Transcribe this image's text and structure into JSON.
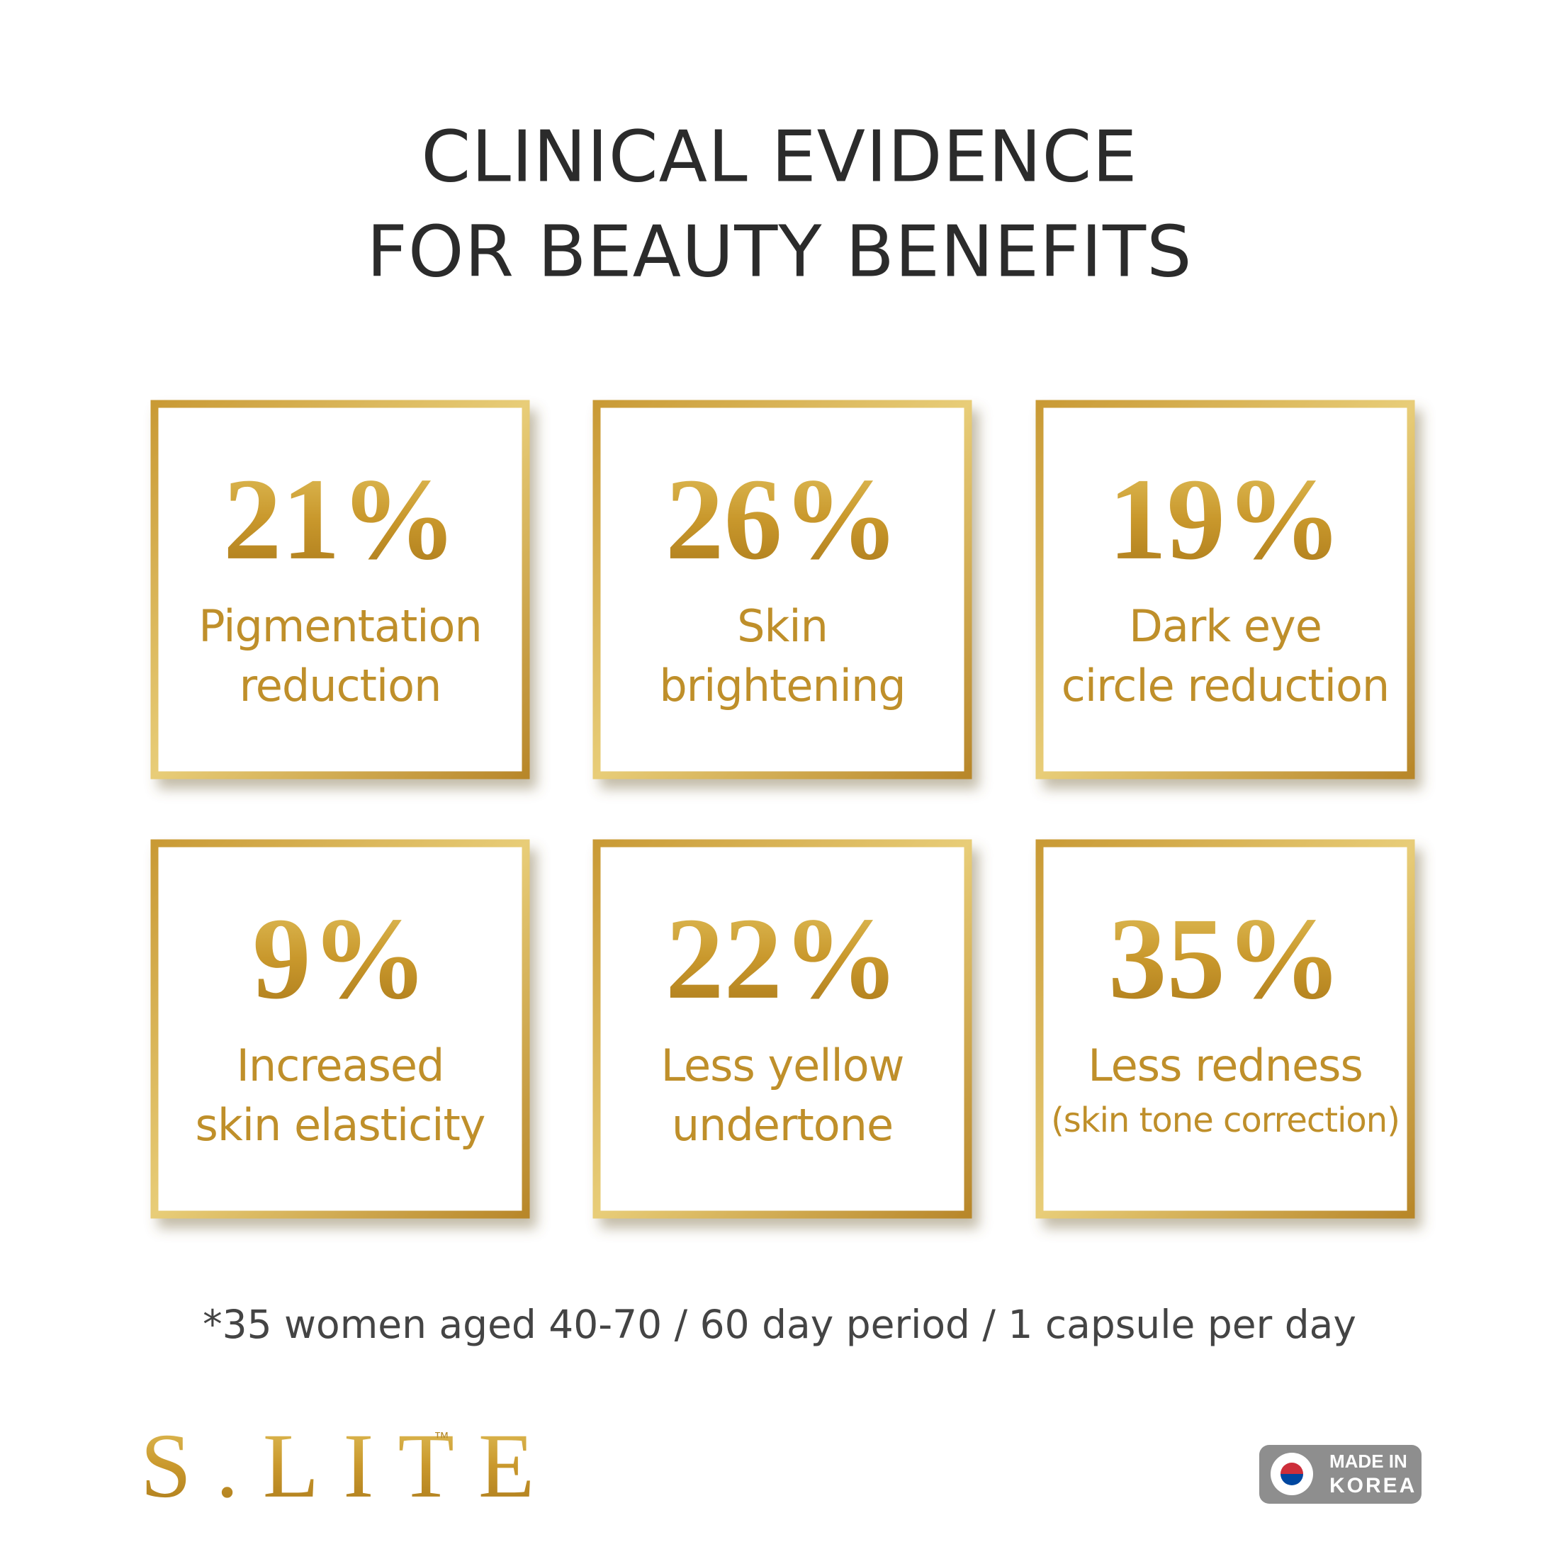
{
  "title": [
    "CLINICAL EVIDENCE",
    "FOR BEAUTY BENEFITS"
  ],
  "cards": [
    {
      "value": "21%",
      "label": [
        "Pigmentation",
        "reduction"
      ]
    },
    {
      "value": "26%",
      "label": [
        "Skin",
        "brightening"
      ]
    },
    {
      "value": "19%",
      "label": [
        "Dark eye",
        "circle reduction"
      ]
    },
    {
      "value": "9%",
      "label": [
        "Increased",
        "skin elasticity"
      ]
    },
    {
      "value": "22%",
      "label": [
        "Less yellow",
        "undertone"
      ]
    },
    {
      "value": "35%",
      "label": [
        "Less redness",
        "(skin tone correction)"
      ]
    }
  ],
  "footnote": "*35 women aged 40-70 / 60 day period / 1 capsule per day",
  "brand": {
    "name": "S.LITE",
    "mark": "™"
  },
  "badge": [
    "MADE IN",
    "KOREA"
  ]
}
